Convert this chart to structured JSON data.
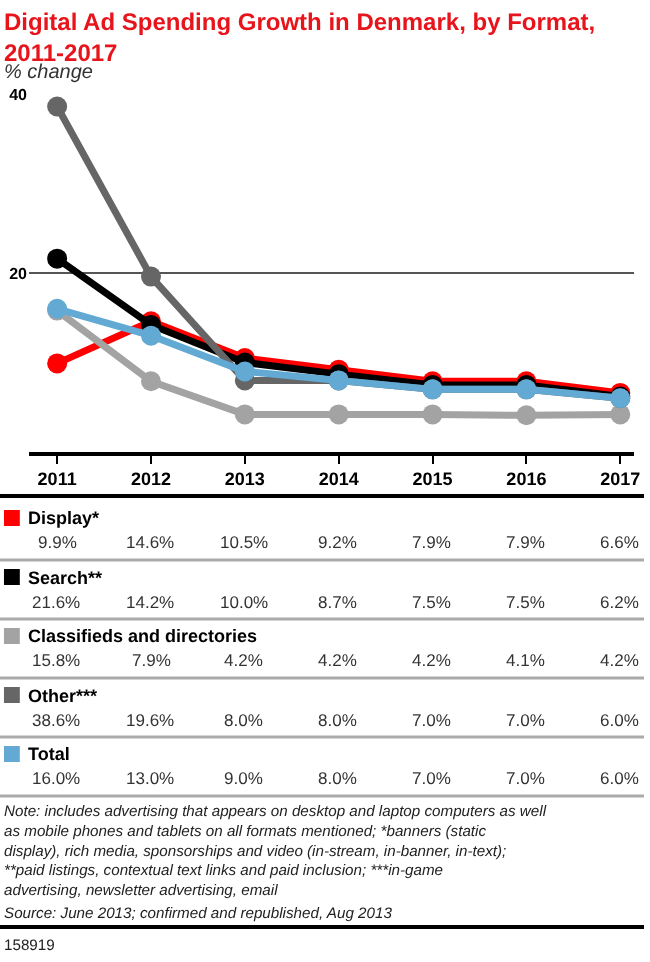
{
  "chart_data": {
    "type": "line",
    "title": "Digital Ad Spending Growth in Denmark, by Format, 2011-2017",
    "subtitle": "% change",
    "categories": [
      "2011",
      "2012",
      "2013",
      "2014",
      "2015",
      "2016",
      "2017"
    ],
    "series": [
      {
        "name": "Display*",
        "color": "#ff0000",
        "values": [
          9.9,
          14.6,
          10.5,
          9.2,
          7.9,
          7.9,
          6.6
        ],
        "value_labels": [
          "9.9%",
          "14.6%",
          "10.5%",
          "9.2%",
          "7.9%",
          "7.9%",
          "6.6%"
        ]
      },
      {
        "name": "Search**",
        "color": "#000000",
        "values": [
          21.6,
          14.2,
          10.0,
          8.7,
          7.5,
          7.5,
          6.2
        ],
        "value_labels": [
          "21.6%",
          "14.2%",
          "10.0%",
          "8.7%",
          "7.5%",
          "7.5%",
          "6.2%"
        ]
      },
      {
        "name": "Classifieds and directories",
        "color": "#a3a3a3",
        "values": [
          15.8,
          7.9,
          4.2,
          4.2,
          4.2,
          4.1,
          4.2
        ],
        "value_labels": [
          "15.8%",
          "7.9%",
          "4.2%",
          "4.2%",
          "4.2%",
          "4.1%",
          "4.2%"
        ]
      },
      {
        "name": "Other***",
        "color": "#666666",
        "values": [
          38.6,
          19.6,
          8.0,
          8.0,
          7.0,
          7.0,
          6.0
        ],
        "value_labels": [
          "38.6%",
          "19.6%",
          "8.0%",
          "8.0%",
          "7.0%",
          "7.0%",
          "6.0%"
        ]
      },
      {
        "name": "Total",
        "color": "#62aad4",
        "values": [
          16.0,
          13.0,
          9.0,
          8.0,
          7.0,
          7.0,
          6.0
        ],
        "value_labels": [
          "16.0%",
          "13.0%",
          "9.0%",
          "8.0%",
          "7.0%",
          "7.0%",
          "6.0%"
        ]
      }
    ],
    "ylim": [
      0,
      40
    ],
    "yticks": [
      20,
      40
    ],
    "grid": "y",
    "legend": "bottom",
    "marker": "circle",
    "line_style": "solid",
    "annotations": [
      "Note: includes advertising that appears on desktop and laptop computers as well as mobile phones and tablets on all formats mentioned; *banners (static display), rich media, sponsorships and video (in-stream, in-banner, in-text); **paid listings, contextual text links and paid inclusion; ***in-game advertising, newsletter advertising, email",
      "Source: June 2013; confirmed and republished, Aug 2013",
      "158919"
    ]
  }
}
